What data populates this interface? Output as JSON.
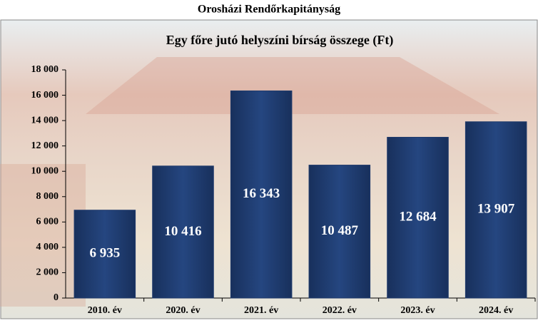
{
  "chart_data": {
    "type": "bar",
    "page_title": "Orosházi Rendőrkapitányság",
    "title": "Egy főre jutó helyszíni bírság összege (Ft)",
    "categories": [
      "2010. év",
      "2020. év",
      "2021. év",
      "2022. év",
      "2023. év",
      "2024. év"
    ],
    "values": [
      6935,
      10416,
      16343,
      10487,
      12684,
      13907
    ],
    "value_labels": [
      "6 935",
      "10 416",
      "16 343",
      "10 487",
      "12 684",
      "13 907"
    ],
    "color": "#1f3a6b",
    "ylim": [
      0,
      18000
    ],
    "yticks": [
      0,
      {
        "value": 2000,
        "label": "2 000"
      },
      {
        "value": 4000,
        "label": "4 000"
      },
      {
        "value": 6000,
        "label": "6 000"
      },
      {
        "value": 8000,
        "label": "8 000"
      },
      {
        "value": 10000,
        "label": "10 000"
      },
      {
        "value": 12000,
        "label": "12 000"
      },
      {
        "value": 14000,
        "label": "14 000"
      },
      {
        "value": 16000,
        "label": "16 000"
      },
      {
        "value": 18000,
        "label": "18 000"
      }
    ]
  }
}
